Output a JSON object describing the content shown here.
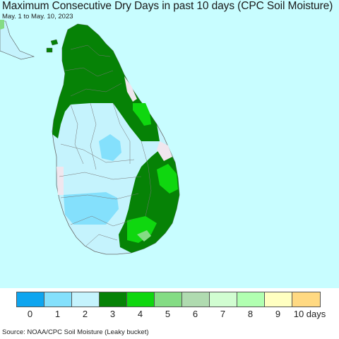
{
  "title": "Maximum Consecutive Dry Days in past 10 days (CPC Soil Moisture)",
  "subtitle": "May. 1 to May. 10, 2023",
  "source": "Source: NOAA/CPC Soil Moisture (Leaky bucket)",
  "legend": {
    "colors": [
      "#0ea5ef",
      "#84e0fc",
      "#c5f3fd",
      "#068206",
      "#0fd70f",
      "#84dc84",
      "#b0dbb0",
      "#d1fdd1",
      "#b1ffb1",
      "#ffffc1",
      "#ffd982"
    ],
    "labels": [
      "0",
      "1",
      "2",
      "3",
      "4",
      "5",
      "6",
      "7",
      "8",
      "9",
      "10 days"
    ]
  },
  "colors": {
    "ocean": "#c8fdff",
    "land_outline": "#6a6a6a"
  }
}
